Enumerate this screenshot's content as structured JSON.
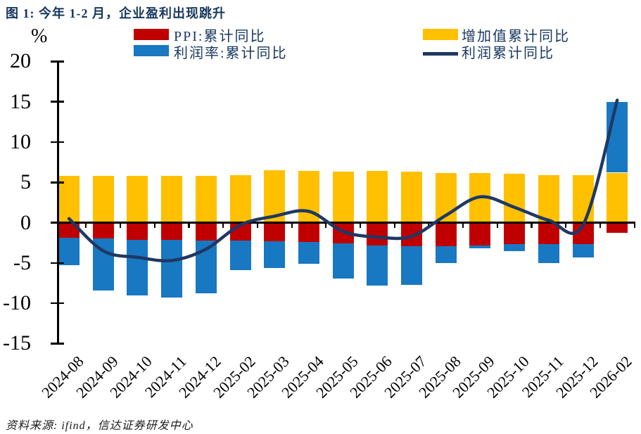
{
  "title": "图 1: 今年 1-2 月，企业盈利出现跳升",
  "y_axis_unit": "%",
  "source": "资料来源: ifind，信达证券研发中心",
  "colors": {
    "ppi_red": "#C00000",
    "margin_blue": "#1878C2",
    "value_added_yellow": "#FFC000",
    "profit_navy": "#1F3864",
    "title_navy": "#17375E"
  },
  "legend": [
    {
      "label": "PPI:累计同比",
      "color": "#C00000",
      "swatch": "rect"
    },
    {
      "label": "利润率:累计同比",
      "color": "#1878C2",
      "swatch": "rect"
    },
    {
      "label": "增加值累计同比",
      "color": "#FFC000",
      "swatch": "rect"
    },
    {
      "label": "利润累计同比",
      "color": "#1F3864",
      "swatch": "line"
    }
  ],
  "chart_data": {
    "type": "bar",
    "subtype": "stacked bars with smooth line overlay",
    "title": "图 1: 今年 1-2 月，企业盈利出现跳升",
    "xlabel": "",
    "ylabel": "%",
    "ylim": [
      -15,
      20
    ],
    "y_ticks": [
      20,
      15,
      10,
      5,
      0,
      -5,
      -10,
      -15
    ],
    "grid": false,
    "legend_position": "top",
    "x_tick_rotation_deg": 45,
    "categories": [
      "2024-08",
      "2024-09",
      "2024-10",
      "2024-11",
      "2024-12",
      "2025-02",
      "2025-03",
      "2025-04",
      "2025-05",
      "2025-06",
      "2025-07",
      "2025-08",
      "2025-09",
      "2025-10",
      "2025-11",
      "2025-12",
      "2026-02"
    ],
    "series": [
      {
        "name": "PPI:累计同比",
        "type": "bar",
        "stacked": true,
        "color": "#C00000",
        "values": [
          -1.9,
          -2.0,
          -2.1,
          -2.1,
          -2.2,
          -2.2,
          -2.3,
          -2.4,
          -2.6,
          -2.8,
          -2.9,
          -2.9,
          -2.8,
          -2.7,
          -2.7,
          -2.7,
          -1.3
        ]
      },
      {
        "name": "增加值累计同比",
        "type": "bar",
        "stacked": true,
        "color": "#FFC000",
        "values": [
          5.8,
          5.8,
          5.8,
          5.8,
          5.8,
          5.9,
          6.5,
          6.4,
          6.3,
          6.4,
          6.3,
          6.2,
          6.2,
          6.1,
          5.9,
          5.9,
          6.2
        ]
      },
      {
        "name": "利润率:累计同比",
        "type": "bar",
        "stacked": true,
        "color": "#1878C2",
        "values": [
          -3.4,
          -6.4,
          -6.9,
          -7.2,
          -6.6,
          -3.7,
          -3.3,
          -2.7,
          -4.3,
          -5.0,
          -4.8,
          -2.1,
          -0.4,
          -0.8,
          -2.3,
          -1.6,
          8.8
        ]
      },
      {
        "name": "利润累计同比",
        "type": "line",
        "color": "#1F3864",
        "values": [
          0.5,
          -3.5,
          -4.3,
          -4.7,
          -3.3,
          -0.3,
          0.8,
          1.4,
          -1.1,
          -1.8,
          -1.7,
          0.9,
          3.2,
          1.9,
          0.3,
          -0.3,
          15.2
        ]
      }
    ]
  }
}
